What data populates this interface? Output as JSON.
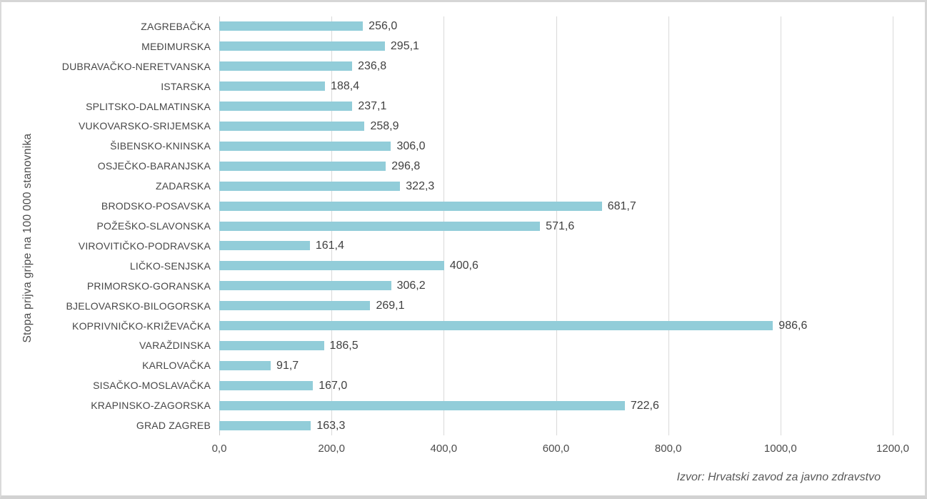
{
  "chart_data": {
    "type": "bar",
    "orientation": "horizontal",
    "title": "",
    "ylabel": "Stopa prijva gripe na 100 000 stanovnika",
    "xlabel": "",
    "categories": [
      "ZAGREBAČKA",
      "MEĐIMURSKA",
      "DUBRAVAČKO-NERETVANSKA",
      "ISTARSKA",
      "SPLITSKO-DALMATINSKA",
      "VUKOVARSKO-SRIJEMSKA",
      "ŠIBENSKO-KNINSKA",
      "OSJEČKO-BARANJSKA",
      "ZADARSKA",
      "BRODSKO-POSAVSKA",
      "POŽEŠKO-SLAVONSKA",
      "VIROVITIČKO-PODRAVSKA",
      "LIČKO-SENJSKA",
      "PRIMORSKO-GORANSKA",
      "BJELOVARSKO-BILOGORSKA",
      "KOPRIVNIČKO-KRIŽEVAČKA",
      "VARAŽDINSKA",
      "KARLOVAČKA",
      "SISAČKO-MOSLAVAČKA",
      "KRAPINSKO-ZAGORSKA",
      "GRAD ZAGREB"
    ],
    "values": [
      256.0,
      295.1,
      236.8,
      188.4,
      237.1,
      258.9,
      306.0,
      296.8,
      322.3,
      681.7,
      571.6,
      161.4,
      400.6,
      306.2,
      269.1,
      986.6,
      186.5,
      91.7,
      167.0,
      722.6,
      163.3
    ],
    "value_labels": [
      "256,0",
      "295,1",
      "236,8",
      "188,4",
      "237,1",
      "258,9",
      "306,0",
      "296,8",
      "322,3",
      "681,7",
      "571,6",
      "161,4",
      "400,6",
      "306,2",
      "269,1",
      "986,6",
      "186,5",
      "91,7",
      "167,0",
      "722,6",
      "163,3"
    ],
    "xlim": [
      0,
      1200
    ],
    "x_tick_values": [
      0,
      200,
      400,
      600,
      800,
      1000,
      1200
    ],
    "x_tick_labels": [
      "0,0",
      "200,0",
      "400,0",
      "600,0",
      "800,0",
      "1000,0",
      "1200,0"
    ],
    "grid": "vertical",
    "legend": "none",
    "bar_color": "#92cdd9",
    "gridline_color": "#d9d9d9",
    "source_note": "Izvor: Hrvatski zavod za javno zdravstvo"
  },
  "colors": {
    "bar": "#92cdd9",
    "gridline": "#d9d9d9",
    "text": "#474747",
    "source_text": "#595959",
    "frame_border": "#d6d6d6",
    "background": "#ffffff"
  }
}
